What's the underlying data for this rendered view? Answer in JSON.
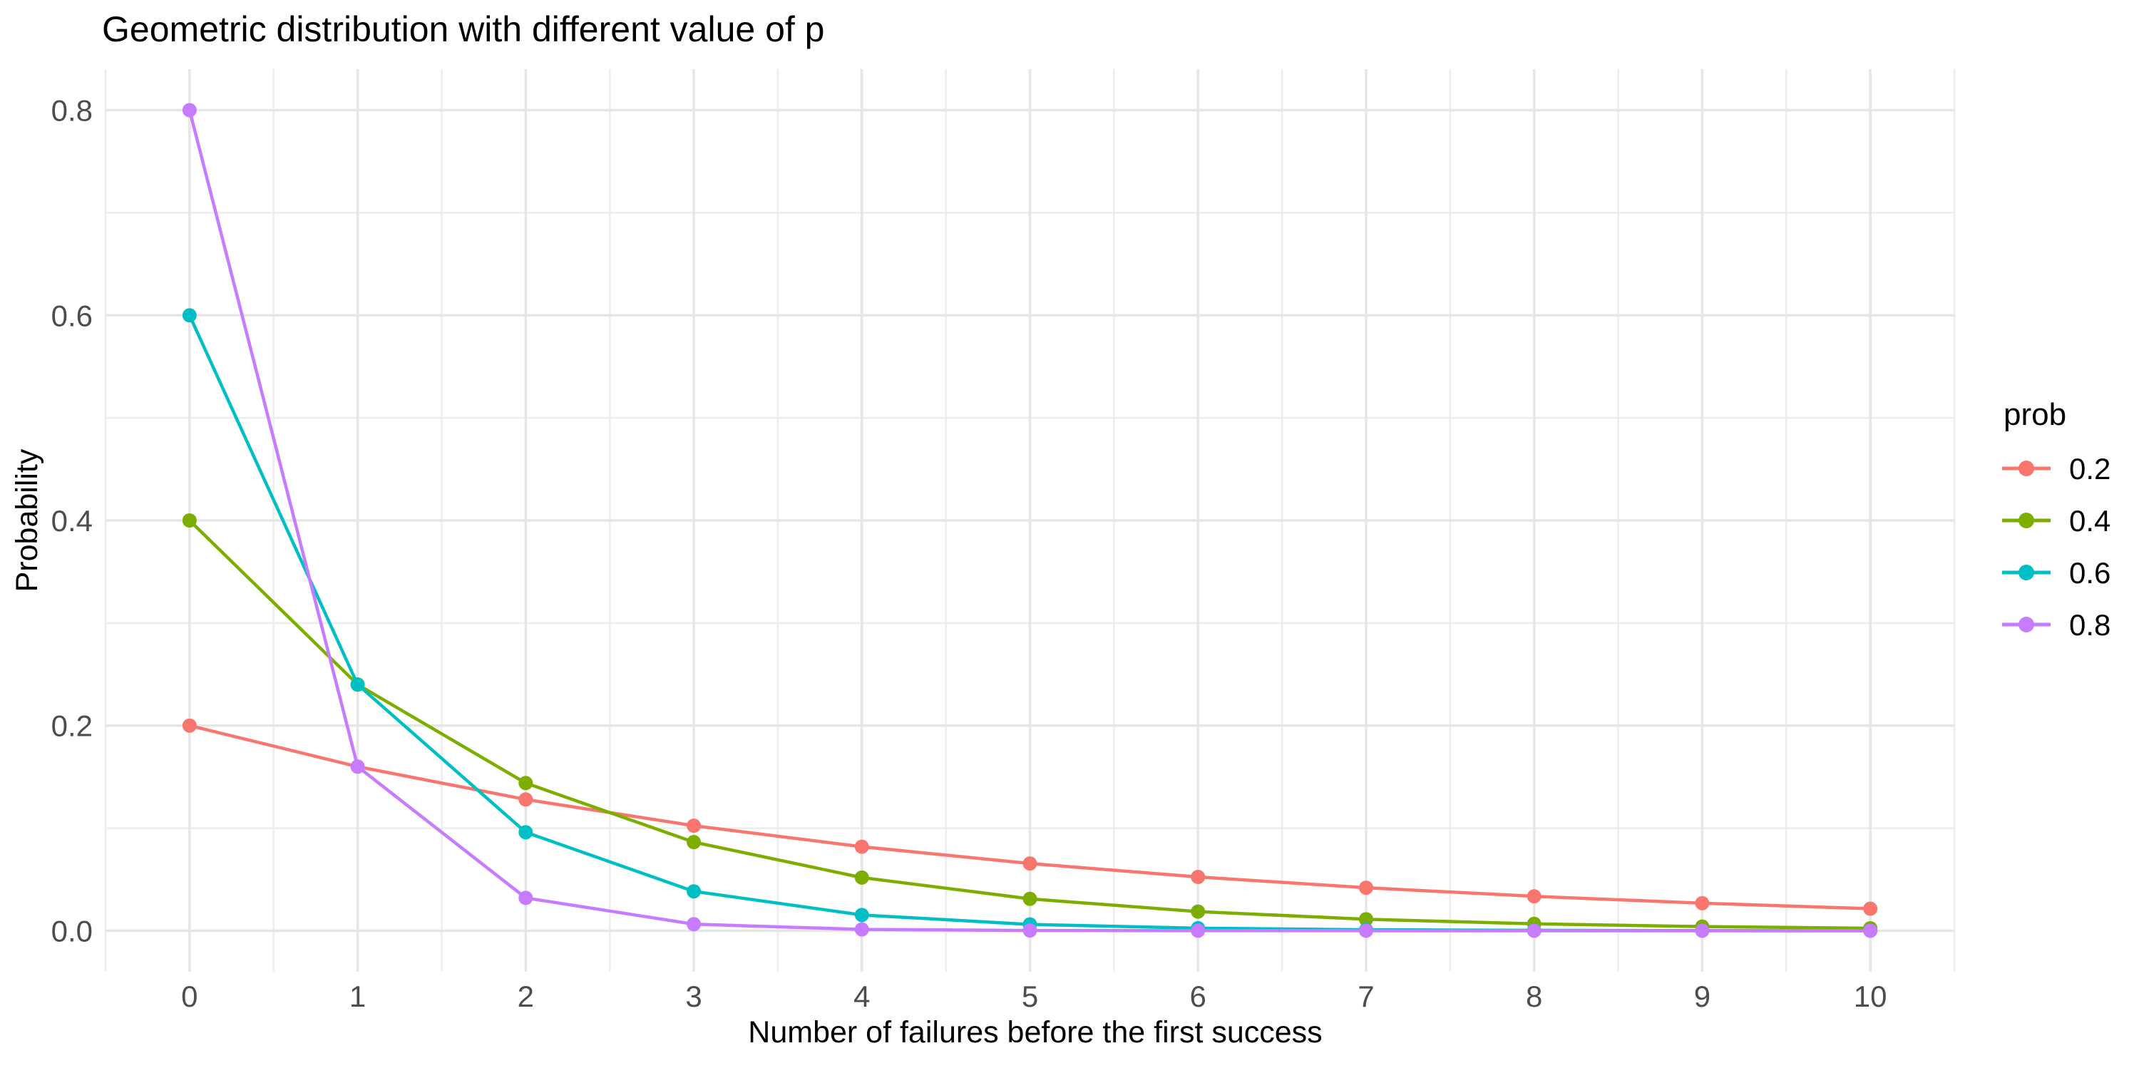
{
  "title": "Geometric distribution with different value of p",
  "axes": {
    "x_label": "Number of failures before the first success",
    "y_label": "Probability",
    "x_tick_labels": [
      "0",
      "1",
      "2",
      "3",
      "4",
      "5",
      "6",
      "7",
      "8",
      "9",
      "10"
    ],
    "y_tick_labels": [
      "0.0",
      "0.2",
      "0.4",
      "0.6",
      "0.8"
    ]
  },
  "legend": {
    "title": "prob",
    "position": "right"
  },
  "style": {
    "background_color": "#ffffff",
    "grid_major_color": "#e6e6e6",
    "grid_minor_color": "#ededed",
    "tick_text_color": "#4d4d4d",
    "text_color": "#000000"
  },
  "chart_data": {
    "type": "line",
    "title": "Geometric distribution with different value of p",
    "xlabel": "Number of failures before the first success",
    "ylabel": "Probability",
    "legend_title": "prob",
    "legend_position": "right",
    "grid": true,
    "x": [
      0,
      1,
      2,
      3,
      4,
      5,
      6,
      7,
      8,
      9,
      10
    ],
    "series": [
      {
        "name": "0.2",
        "color": "#F8766D",
        "values": [
          0.2,
          0.16,
          0.128,
          0.1024,
          0.08192,
          0.065536,
          0.0524288,
          0.041943,
          0.0335544,
          0.0268435,
          0.0214748
        ]
      },
      {
        "name": "0.4",
        "color": "#7CAE00",
        "values": [
          0.4,
          0.24,
          0.144,
          0.0864,
          0.05184,
          0.031104,
          0.0186624,
          0.0111974,
          0.0067185,
          0.0040311,
          0.0024186
        ]
      },
      {
        "name": "0.6",
        "color": "#00BFC4",
        "values": [
          0.6,
          0.24,
          0.096,
          0.0384,
          0.01536,
          0.006144,
          0.0024576,
          0.000983,
          0.0003932,
          0.0001573,
          6.29e-05
        ]
      },
      {
        "name": "0.8",
        "color": "#C77CFF",
        "values": [
          0.8,
          0.16,
          0.032,
          0.0064,
          0.00128,
          0.000256,
          5.12e-05,
          1.02e-05,
          2e-06,
          4e-07,
          1e-07
        ]
      }
    ],
    "xlim": [
      -0.5,
      10.5
    ],
    "ylim": [
      -0.04,
      0.84
    ],
    "x_major_ticks": [
      0,
      1,
      2,
      3,
      4,
      5,
      6,
      7,
      8,
      9,
      10
    ],
    "y_major_ticks": [
      0,
      0.2,
      0.4,
      0.6,
      0.8
    ],
    "x_minor_ticks": [
      -0.5,
      0.5,
      1.5,
      2.5,
      3.5,
      4.5,
      5.5,
      6.5,
      7.5,
      8.5,
      9.5,
      10.5
    ],
    "y_minor_ticks": [
      0.1,
      0.3,
      0.5,
      0.7
    ]
  }
}
